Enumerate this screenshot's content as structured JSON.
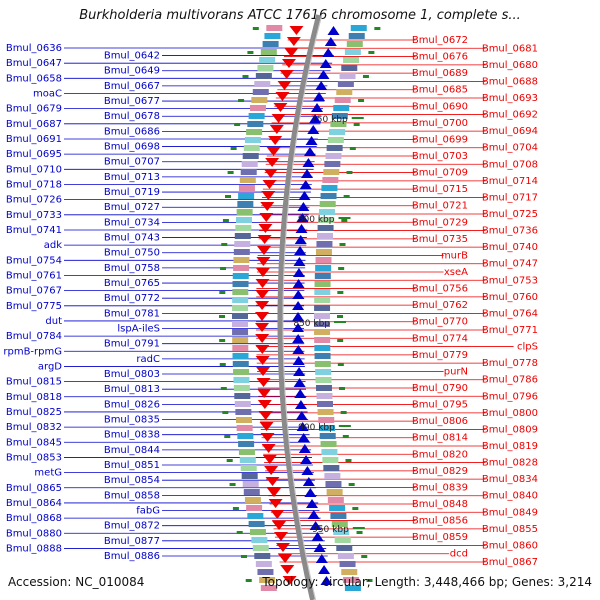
{
  "header": {
    "title": "Burkholderia multivorans ATCC 17616 chromosome 1, complete s..."
  },
  "footer": {
    "accession": "Accession: NC_010084",
    "summary": "Topology: circular; Length: 3,448,466 bp; Genes: 3,214"
  },
  "colors": {
    "forward": "#0000cc",
    "reverse": "#ee0000",
    "backbone": "#8a8a8a",
    "tick": "#228822"
  },
  "axis_ticks": [
    "750 kbp",
    "800 kbp",
    "850 kbp",
    "900 kbp",
    "950 kbp"
  ],
  "forward_genes": [
    "Bmul_0636",
    "Bmul_0642",
    "Bmul_0647",
    "Bmul_0649",
    "Bmul_0658",
    "Bmul_0667",
    "moaC",
    "Bmul_0677",
    "Bmul_0679",
    "Bmul_0678",
    "Bmul_0687",
    "Bmul_0686",
    "Bmul_0691",
    "Bmul_0698",
    "Bmul_0695",
    "Bmul_0707",
    "Bmul_0710",
    "Bmul_0713",
    "Bmul_0718",
    "Bmul_0719",
    "Bmul_0726",
    "Bmul_0727",
    "Bmul_0733",
    "Bmul_0734",
    "Bmul_0741",
    "Bmul_0743",
    "adk",
    "Bmul_0750",
    "Bmul_0754",
    "Bmul_0758",
    "Bmul_0761",
    "Bmul_0765",
    "Bmul_0767",
    "Bmul_0772",
    "Bmul_0775",
    "Bmul_0781",
    "dut",
    "lspA-ileS",
    "Bmul_0784",
    "Bmul_0791",
    "rpmB-rpmG",
    "radC",
    "argD",
    "Bmul_0803",
    "Bmul_0815",
    "Bmul_0813",
    "Bmul_0818",
    "Bmul_0826",
    "Bmul_0825",
    "Bmul_0835",
    "Bmul_0832",
    "Bmul_0838",
    "Bmul_0845",
    "Bmul_0844",
    "Bmul_0853",
    "Bmul_0851",
    "metG",
    "Bmul_0854",
    "Bmul_0865",
    "Bmul_0858",
    "Bmul_0864",
    "fabG",
    "Bmul_0868",
    "Bmul_0872",
    "Bmul_0880",
    "Bmul_0877",
    "Bmul_0888",
    "Bmul_0886"
  ],
  "reverse_genes": [
    "Bmul_0672",
    "Bmul_0681",
    "Bmul_0676",
    "Bmul_0680",
    "Bmul_0689",
    "Bmul_0688",
    "Bmul_0685",
    "Bmul_0693",
    "Bmul_0690",
    "Bmul_0692",
    "Bmul_0700",
    "Bmul_0694",
    "Bmul_0699",
    "Bmul_0704",
    "Bmul_0703",
    "Bmul_0708",
    "Bmul_0709",
    "Bmul_0714",
    "Bmul_0715",
    "Bmul_0717",
    "Bmul_0721",
    "Bmul_0725",
    "Bmul_0729",
    "Bmul_0736",
    "Bmul_0735",
    "Bmul_0740",
    "murB",
    "Bmul_0747",
    "xseA",
    "Bmul_0753",
    "Bmul_0756",
    "Bmul_0760",
    "Bmul_0762",
    "Bmul_0764",
    "Bmul_0770",
    "Bmul_0771",
    "Bmul_0774",
    "clpS",
    "Bmul_0779",
    "Bmul_0778",
    "purN",
    "Bmul_0786",
    "Bmul_0790",
    "Bmul_0796",
    "Bmul_0795",
    "Bmul_0800",
    "Bmul_0806",
    "Bmul_0809",
    "Bmul_0814",
    "Bmul_0819",
    "Bmul_0820",
    "Bmul_0828",
    "Bmul_0829",
    "Bmul_0834",
    "Bmul_0839",
    "Bmul_0840",
    "Bmul_0848",
    "Bmul_0849",
    "Bmul_0856",
    "Bmul_0855",
    "Bmul_0859",
    "Bmul_0860",
    "dcd",
    "Bmul_0867"
  ]
}
